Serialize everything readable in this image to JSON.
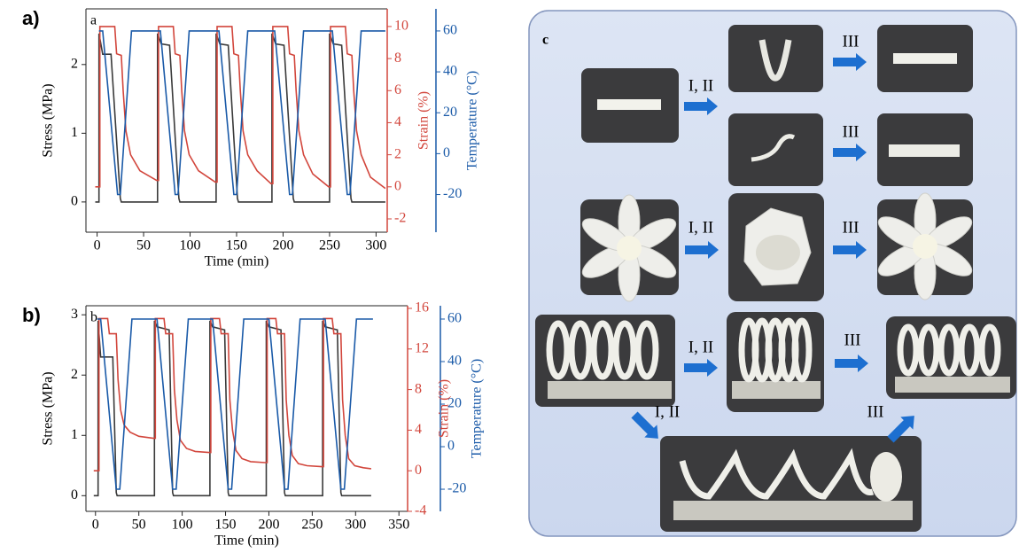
{
  "chart_data": [
    {
      "type": "line",
      "label": "a)",
      "panel_text": "a",
      "xlabel": "Time (min)",
      "ylabel": "Stress (MPa)",
      "y2label": "Strain (%)",
      "y3label": "Temperature (°C)",
      "xlim": [
        -12,
        312
      ],
      "xticks": [
        0,
        50,
        100,
        150,
        200,
        250,
        300
      ],
      "ylim": [
        -0.44,
        2.81
      ],
      "yticks": [
        0,
        1,
        2
      ],
      "y2lim": [
        -2.83,
        11.1
      ],
      "y2ticks": [
        -2,
        0,
        2,
        4,
        6,
        8,
        10
      ],
      "y3lim": [
        -38.4,
        70.8
      ],
      "y3ticks": [
        -20,
        0,
        20,
        40,
        60
      ],
      "series": [
        {
          "color": "#3a3a3a",
          "axis": "y",
          "x": [
            -2,
            2,
            2,
            6,
            15,
            25,
            26,
            65,
            65,
            69,
            78,
            88,
            89,
            128,
            128,
            132,
            141,
            151,
            152,
            188,
            188,
            192,
            201,
            211,
            212,
            250,
            250,
            254,
            263,
            273,
            274,
            310
          ],
          "values": [
            0,
            0,
            2.45,
            2.15,
            2.15,
            0.05,
            0,
            0,
            2.45,
            2.3,
            2.28,
            0.05,
            0,
            0,
            2.45,
            2.3,
            2.28,
            0.05,
            0,
            0,
            2.45,
            2.3,
            2.28,
            0.05,
            0,
            0,
            2.45,
            2.3,
            2.28,
            0.05,
            0,
            0
          ]
        },
        {
          "color": "#d2463c",
          "axis": "y2",
          "x": [
            -2,
            3,
            3,
            19,
            21,
            26,
            28,
            31,
            36,
            46,
            64,
            66,
            66,
            82,
            84,
            89,
            91,
            94,
            99,
            109,
            127,
            129,
            129,
            145,
            147,
            152,
            154,
            157,
            162,
            172,
            187,
            189,
            189,
            205,
            207,
            212,
            214,
            217,
            222,
            232,
            249,
            251,
            251,
            267,
            269,
            274,
            276,
            279,
            284,
            294,
            310
          ],
          "values": [
            0,
            0,
            10,
            10,
            8.3,
            8.2,
            6,
            3.5,
            2,
            1,
            0.4,
            0.4,
            10,
            10,
            8.3,
            8.2,
            6,
            3.5,
            2,
            1,
            0.3,
            0.3,
            10,
            10,
            8.3,
            8.2,
            6,
            3.5,
            2,
            1,
            0.2,
            0.2,
            10,
            10,
            8.3,
            8.2,
            6,
            3.5,
            2,
            0.8,
            0,
            0,
            10,
            10,
            8.3,
            8.2,
            6,
            3.5,
            2,
            0.6,
            -0.1
          ]
        },
        {
          "color": "#1a5aa8",
          "axis": "y3",
          "x": [
            2,
            6,
            22,
            25,
            37,
            68,
            84,
            87,
            99,
            131,
            147,
            150,
            162,
            191,
            207,
            210,
            222,
            253,
            269,
            272,
            284,
            310
          ],
          "values": [
            60,
            60,
            -20,
            -20,
            60,
            60,
            -20,
            -20,
            60,
            60,
            -20,
            -20,
            60,
            60,
            -20,
            -20,
            60,
            60,
            -20,
            -20,
            60,
            60
          ]
        }
      ]
    },
    {
      "type": "line",
      "label": "b)",
      "panel_text": "b",
      "xlabel": "Time (min)",
      "ylabel": "Stress (MPa)",
      "y2label": "Strain (%)",
      "y3label": "Temperature (°C)",
      "xlim": [
        -11,
        360
      ],
      "xticks": [
        0,
        50,
        100,
        150,
        200,
        250,
        300,
        350
      ],
      "ylim": [
        -0.26,
        3.15
      ],
      "yticks": [
        0,
        1,
        2,
        3
      ],
      "y2lim": [
        -4,
        16.26
      ],
      "y2ticks": [
        -4,
        0,
        4,
        8,
        12,
        16
      ],
      "y3lim": [
        -30.4,
        66.25
      ],
      "y3ticks": [
        -20,
        0,
        20,
        40,
        60
      ],
      "series": [
        {
          "color": "#3a3a3a",
          "axis": "y",
          "x": [
            -2,
            3,
            3,
            6,
            20,
            24,
            25,
            68,
            68,
            71,
            85,
            89,
            90,
            132,
            132,
            135,
            149,
            153,
            154,
            197,
            197,
            200,
            214,
            218,
            219,
            262,
            262,
            265,
            279,
            283,
            284,
            318
          ],
          "values": [
            0,
            0,
            2.9,
            2.3,
            2.3,
            0.05,
            0,
            0,
            2.9,
            2.8,
            2.75,
            0.05,
            0,
            0,
            2.9,
            2.8,
            2.75,
            0.05,
            0,
            0,
            2.9,
            2.8,
            2.75,
            0.05,
            0,
            0,
            2.9,
            2.8,
            2.75,
            0.05,
            0,
            0
          ]
        },
        {
          "color": "#d2463c",
          "axis": "y2",
          "x": [
            -2,
            4,
            4,
            14,
            16,
            24,
            26,
            29,
            33,
            40,
            50,
            67,
            69,
            69,
            79,
            81,
            89,
            91,
            94,
            98,
            105,
            115,
            131,
            133,
            133,
            143,
            145,
            153,
            155,
            158,
            162,
            169,
            179,
            196,
            198,
            198,
            208,
            210,
            218,
            220,
            223,
            227,
            234,
            244,
            261,
            263,
            263,
            273,
            275,
            283,
            285,
            288,
            292,
            299,
            309,
            318
          ],
          "values": [
            0,
            0,
            15,
            15,
            13.5,
            13.5,
            9,
            6,
            4.5,
            3.8,
            3.4,
            3.2,
            3.2,
            15,
            15,
            13.5,
            13.5,
            8,
            5,
            3,
            2.2,
            1.9,
            1.8,
            1.8,
            15,
            15,
            13.5,
            13.5,
            7,
            4,
            2,
            1.2,
            0.9,
            0.8,
            0.8,
            15,
            15,
            13.5,
            13.5,
            7,
            3.5,
            1.5,
            0.7,
            0.5,
            0.4,
            0.4,
            15,
            15,
            13.5,
            13.5,
            7,
            3.5,
            1.2,
            0.5,
            0.3,
            0.2
          ]
        },
        {
          "color": "#1a5aa8",
          "axis": "y3",
          "x": [
            2,
            6,
            24,
            28,
            42,
            71,
            89,
            93,
            107,
            135,
            153,
            157,
            171,
            200,
            218,
            222,
            236,
            265,
            283,
            287,
            301,
            320
          ],
          "values": [
            60,
            60,
            -20,
            -20,
            60,
            60,
            -20,
            -20,
            60,
            60,
            -20,
            -20,
            60,
            60,
            -20,
            -20,
            60,
            60,
            -20,
            -20,
            60,
            60
          ]
        }
      ]
    }
  ],
  "diagram": {
    "label": "c",
    "arrows": [
      {
        "label": "I, II"
      },
      {
        "label": "III"
      },
      {
        "label": "III"
      },
      {
        "label": "I, II"
      },
      {
        "label": "III"
      },
      {
        "label": "I, II"
      },
      {
        "label": "III"
      },
      {
        "label": "I, II"
      },
      {
        "label": "III"
      }
    ]
  }
}
